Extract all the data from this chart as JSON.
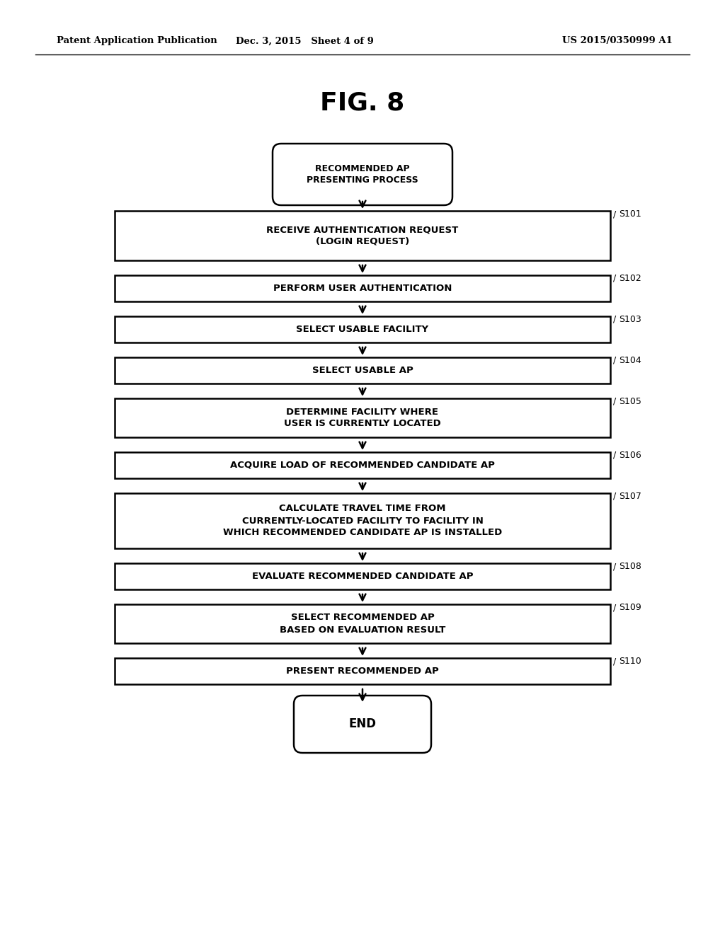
{
  "title": "FIG. 8",
  "header_left": "Patent Application Publication",
  "header_mid": "Dec. 3, 2015   Sheet 4 of 9",
  "header_right": "US 2015/0350999 A1",
  "start_label": "RECOMMENDED AP\nPRESENTING PROCESS",
  "end_label": "END",
  "steps": [
    {
      "id": "S101",
      "text": "RECEIVE AUTHENTICATION REQUEST\n(LOGIN REQUEST)",
      "lines": 2
    },
    {
      "id": "S102",
      "text": "PERFORM USER AUTHENTICATION",
      "lines": 1
    },
    {
      "id": "S103",
      "text": "SELECT USABLE FACILITY",
      "lines": 1
    },
    {
      "id": "S104",
      "text": "SELECT USABLE AP",
      "lines": 1
    },
    {
      "id": "S105",
      "text": "DETERMINE FACILITY WHERE\nUSER IS CURRENTLY LOCATED",
      "lines": 2
    },
    {
      "id": "S106",
      "text": "ACQUIRE LOAD OF RECOMMENDED CANDIDATE AP",
      "lines": 1
    },
    {
      "id": "S107",
      "text": "CALCULATE TRAVEL TIME FROM\nCURRENTLY-LOCATED FACILITY TO FACILITY IN\nWHICH RECOMMENDED CANDIDATE AP IS INSTALLED",
      "lines": 3
    },
    {
      "id": "S108",
      "text": "EVALUATE RECOMMENDED CANDIDATE AP",
      "lines": 1
    },
    {
      "id": "S109",
      "text": "SELECT RECOMMENDED AP\nBASED ON EVALUATION RESULT",
      "lines": 2
    },
    {
      "id": "S110",
      "text": "PRESENT RECOMMENDED AP",
      "lines": 1
    }
  ],
  "bg_color": "#ffffff",
  "box_color": "#ffffff",
  "box_edge_color": "#000000",
  "text_color": "#000000",
  "arrow_color": "#000000",
  "fig_width": 10.24,
  "fig_height": 13.2,
  "dpi": 100
}
